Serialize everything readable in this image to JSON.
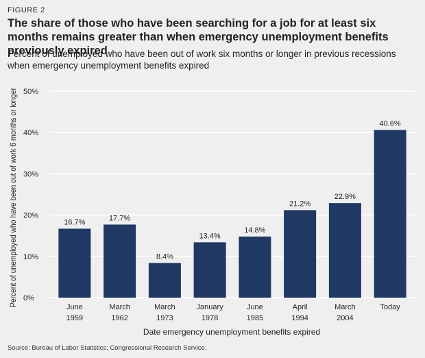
{
  "figure_label": "FIGURE 2",
  "title": "The share of those who have been searching for a job for at least six months remains greater than when emergency unemployment benefits previously expired",
  "subtitle": "Percent of unemployed who have been out of work six months or longer in previous recessions when emergency unemployment benefits expired",
  "source": "Source: Bureau of Labor Statistics; Congressional Research Service.",
  "chart_data": {
    "type": "bar",
    "categories": [
      [
        "June",
        "1959"
      ],
      [
        "March",
        "1962"
      ],
      [
        "March",
        "1973"
      ],
      [
        "January",
        "1978"
      ],
      [
        "June",
        "1985"
      ],
      [
        "April",
        "1994"
      ],
      [
        "March",
        "2004"
      ],
      [
        "Today"
      ]
    ],
    "values": [
      16.7,
      17.7,
      8.4,
      13.4,
      14.8,
      21.2,
      22.9,
      40.6
    ],
    "data_labels": [
      "16.7%",
      "17.7%",
      "8.4%",
      "13.4%",
      "14.8%",
      "21.2%",
      "22.9%",
      "40.6%"
    ],
    "ylim": [
      0,
      50
    ],
    "yticks": [
      0,
      10,
      20,
      30,
      40,
      50
    ],
    "ytick_labels": [
      "0%",
      "10%",
      "20%",
      "30%",
      "40%",
      "50%"
    ],
    "xlabel": "Date emergency unemployment benefits expired",
    "ylabel": "Percent of unemployed who have been out of work 6 months or longer",
    "colors": {
      "bar": "#1f3864",
      "grid": "#ffffff",
      "background": "#efefef"
    },
    "grid": true
  }
}
